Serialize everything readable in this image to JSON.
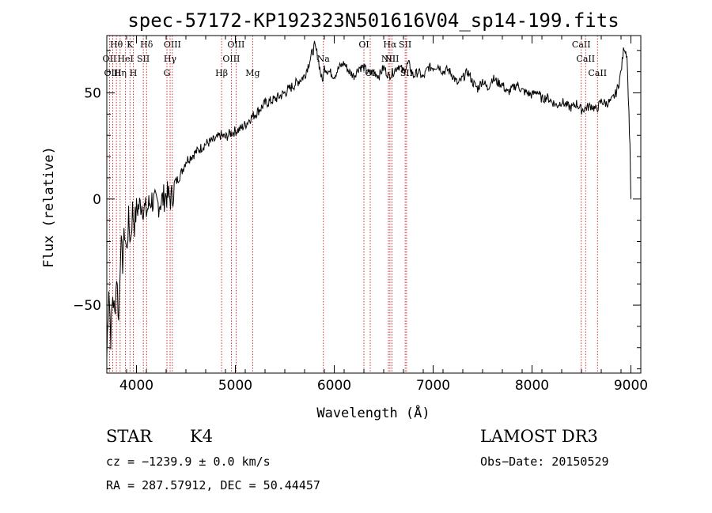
{
  "chart_data": {
    "type": "line",
    "title": "spec-57172-KP192323N501616V04_sp14-199.fits",
    "xlabel": "Wavelength (Å)",
    "ylabel": "Flux (relative)",
    "xlim": [
      3700,
      9100
    ],
    "ylim": [
      -82,
      77
    ],
    "xticks": [
      4000,
      5000,
      6000,
      7000,
      8000,
      9000
    ],
    "yticks": [
      -50,
      0,
      50
    ],
    "grid": false,
    "series": [
      {
        "name": "flux",
        "x": [
          3700,
          3720,
          3740,
          3760,
          3780,
          3800,
          3820,
          3840,
          3860,
          3880,
          3900,
          3920,
          3940,
          3960,
          3980,
          4000,
          4050,
          4100,
          4150,
          4200,
          4250,
          4300,
          4350,
          4400,
          4450,
          4500,
          4550,
          4600,
          4650,
          4700,
          4750,
          4800,
          4850,
          4900,
          4950,
          5000,
          5050,
          5100,
          5150,
          5200,
          5300,
          5400,
          5500,
          5600,
          5700,
          5800,
          5830,
          5860,
          5880,
          5900,
          5950,
          6000,
          6050,
          6100,
          6150,
          6200,
          6250,
          6300,
          6350,
          6400,
          6450,
          6500,
          6550,
          6600,
          6650,
          6700,
          6750,
          6800,
          6850,
          6900,
          6950,
          7000,
          7050,
          7100,
          7150,
          7200,
          7250,
          7300,
          7350,
          7400,
          7450,
          7500,
          7550,
          7600,
          7650,
          7700,
          7750,
          7800,
          7850,
          7900,
          7950,
          8000,
          8050,
          8100,
          8150,
          8200,
          8250,
          8300,
          8350,
          8400,
          8450,
          8500,
          8550,
          8600,
          8650,
          8700,
          8750,
          8800,
          8850,
          8880,
          8900,
          8930,
          8960,
          8980,
          8990,
          9000
        ],
        "y": [
          -75,
          -40,
          -65,
          -45,
          -55,
          -35,
          -58,
          -20,
          -30,
          -15,
          -25,
          -10,
          -20,
          -5,
          -12,
          -5,
          -2,
          -6,
          0,
          -3,
          -1,
          2,
          0,
          8,
          12,
          18,
          20,
          22,
          24,
          26,
          27,
          28,
          30,
          29,
          31,
          32,
          33,
          35,
          38,
          40,
          45,
          47,
          50,
          54,
          58,
          72,
          68,
          60,
          55,
          62,
          60,
          58,
          62,
          64,
          60,
          58,
          62,
          62,
          59,
          60,
          58,
          62,
          58,
          60,
          63,
          60,
          64,
          58,
          60,
          57,
          62,
          62,
          63,
          60,
          61,
          58,
          54,
          57,
          60,
          55,
          52,
          56,
          52,
          57,
          55,
          54,
          50,
          52,
          54,
          51,
          50,
          49,
          51,
          47,
          48,
          46,
          44,
          46,
          44,
          43,
          45,
          42,
          43,
          44,
          42,
          46,
          45,
          46,
          50,
          55,
          60,
          72,
          68,
          40,
          25,
          0
        ]
      }
    ],
    "lines": [
      {
        "label": "Hθ",
        "wl": 3797,
        "row": 0
      },
      {
        "label": "K",
        "wl": 3934,
        "row": 0
      },
      {
        "label": "Hδ",
        "wl": 4102,
        "row": 0
      },
      {
        "label": "OIII",
        "wl": 4363,
        "row": 0
      },
      {
        "label": "OIII",
        "wl": 5007,
        "row": 0
      },
      {
        "label": "OI",
        "wl": 6300,
        "row": 0
      },
      {
        "label": "Hα",
        "wl": 6563,
        "row": 0
      },
      {
        "label": "SII",
        "wl": 6717,
        "row": 0
      },
      {
        "label": "CaII",
        "wl": 8498,
        "row": 0
      },
      {
        "label": "OII",
        "wl": 3727,
        "row": 1
      },
      {
        "label": "HeI",
        "wl": 3889,
        "row": 1
      },
      {
        "label": "SII",
        "wl": 4069,
        "row": 1
      },
      {
        "label": "Hγ",
        "wl": 4340,
        "row": 1
      },
      {
        "label": "OIII",
        "wl": 4959,
        "row": 1
      },
      {
        "label": "Na",
        "wl": 5890,
        "row": 1
      },
      {
        "label": "NII",
        "wl": 6548,
        "row": 1
      },
      {
        "label": "NII",
        "wl": 6583,
        "row": 1
      },
      {
        "label": "CaII",
        "wl": 8542,
        "row": 1
      },
      {
        "label": "OIII",
        "wl": 3760,
        "row": 2
      },
      {
        "label": "Hη",
        "wl": 3835,
        "row": 2
      },
      {
        "label": "H",
        "wl": 3968,
        "row": 2
      },
      {
        "label": "G",
        "wl": 4308,
        "row": 2
      },
      {
        "label": "Hβ",
        "wl": 4861,
        "row": 2
      },
      {
        "label": "Mg",
        "wl": 5175,
        "row": 2
      },
      {
        "label": "OI",
        "wl": 6364,
        "row": 2
      },
      {
        "label": "SII",
        "wl": 6731,
        "row": 2
      },
      {
        "label": "CaII",
        "wl": 8662,
        "row": 2
      }
    ]
  },
  "info": {
    "object_class": "STAR",
    "subclass": "K4",
    "survey": "LAMOST DR3",
    "cz": "cz = −1239.9 ± 0.0 km/s",
    "obs_date": "Obs−Date: 20150529",
    "coords": "RA = 287.57912, DEC =  50.44457"
  },
  "colors": {
    "axis": "#000000",
    "spectrum": "#000000",
    "line_markers": "#c00000"
  }
}
